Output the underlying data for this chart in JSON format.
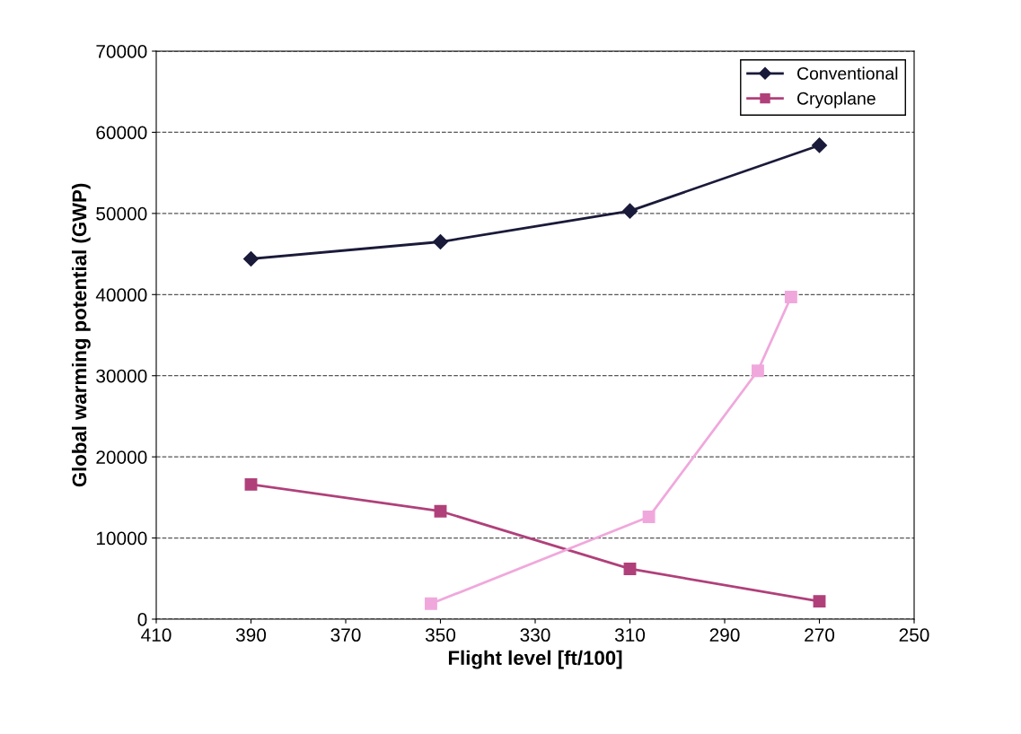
{
  "chart_data": {
    "type": "line",
    "xlabel": "Flight level [ft/100]",
    "ylabel": "Global warming potential (GWP)",
    "xlim": [
      410,
      250
    ],
    "xticks": [
      410,
      390,
      370,
      350,
      330,
      310,
      290,
      270,
      250
    ],
    "ylim": [
      0,
      70000
    ],
    "yticks": [
      0,
      10000,
      20000,
      30000,
      40000,
      50000,
      60000,
      70000
    ],
    "grid": "y",
    "legend": "top right",
    "series": [
      {
        "name": "Conventional",
        "color": "#1a1a3a",
        "marker": "diamond",
        "x": [
          390,
          350,
          310,
          270
        ],
        "values": [
          44400,
          46500,
          50300,
          58400
        ]
      },
      {
        "name": "Cryoplane",
        "color": "#b0407a",
        "marker": "square",
        "x": [
          390,
          350,
          310,
          270
        ],
        "values": [
          16600,
          13300,
          6200,
          2200
        ]
      },
      {
        "color": "#f0a8dc",
        "marker": "square",
        "x": [
          352,
          306,
          283,
          276
        ],
        "values": [
          1900,
          12600,
          30600,
          39700
        ]
      }
    ]
  }
}
